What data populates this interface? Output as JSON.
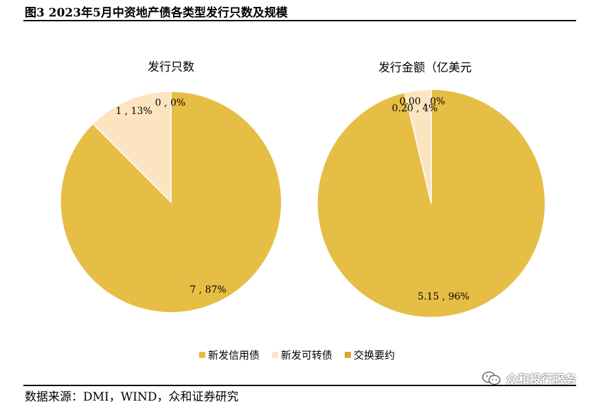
{
  "figure": {
    "title": "图3 2023年5月中资地产债各类型发行只数及规模",
    "source": "数据来源：DMI，WIND，众和证券研究",
    "watermark": "众和投行服务"
  },
  "legend": [
    {
      "label": "新发信用债",
      "color": "#E6BE45"
    },
    {
      "label": "新发可转债",
      "color": "#FCE4C0"
    },
    {
      "label": "交换要约",
      "color": "#D9A82E"
    }
  ],
  "chart_data": [
    {
      "type": "pie",
      "title": "发行只数",
      "legend": "bottom",
      "slices": [
        {
          "name": "新发信用债",
          "value": 7,
          "percent": 87,
          "label": "7 , 87%",
          "color": "#E6BE45"
        },
        {
          "name": "新发可转债",
          "value": 1,
          "percent": 13,
          "label": "1 , 13%",
          "color": "#FCE4C0"
        },
        {
          "name": "交换要约",
          "value": 0,
          "percent": 0,
          "label": "0 , 0%",
          "color": "#D9A82E"
        }
      ]
    },
    {
      "type": "pie",
      "title": "发行金额（亿美元",
      "legend": "bottom",
      "slices": [
        {
          "name": "新发信用债",
          "value": 5.15,
          "percent": 96,
          "label": "5.15 , 96%",
          "color": "#E6BE45"
        },
        {
          "name": "新发可转债",
          "value": 0.2,
          "percent": 4,
          "label": "0.20 , 4%",
          "color": "#FCE4C0"
        },
        {
          "name": "交换要约",
          "value": 0.0,
          "percent": 0,
          "label": "0.00 , 0%",
          "color": "#D9A82E"
        }
      ]
    }
  ]
}
